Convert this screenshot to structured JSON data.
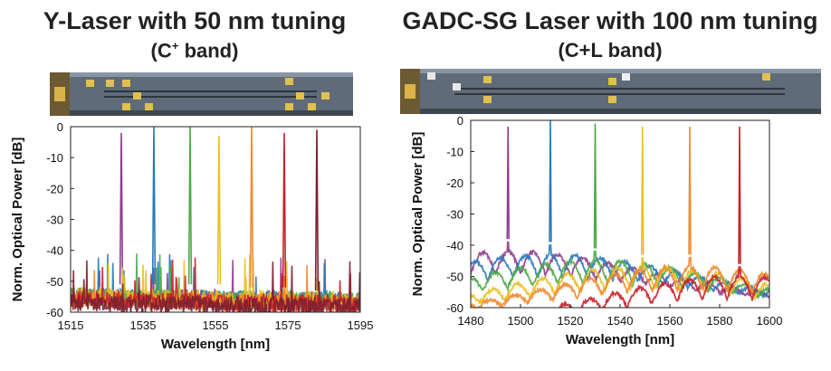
{
  "chart_data": [
    {
      "type": "line",
      "title": "Y-Laser with 50 nm tuning",
      "subtitle_prefix": "(C",
      "subtitle_sup": "+",
      "subtitle_suffix": " band)",
      "xlabel": "Wavelength [nm]",
      "ylabel": "Norm. Optical Power [dB]",
      "xlim": [
        1515,
        1595
      ],
      "ylim": [
        -60,
        0
      ],
      "xticks": [
        1515,
        1535,
        1555,
        1575,
        1595
      ],
      "yticks": [
        0,
        -10,
        -20,
        -30,
        -40,
        -50,
        -60
      ],
      "grid": false,
      "legend": "none",
      "series": [
        {
          "color": "#8e3d8e",
          "peak_x": 1529,
          "peak_y": -2,
          "floor": -55
        },
        {
          "color": "#2a7ab8",
          "peak_x": 1538,
          "peak_y": 0,
          "floor": -55
        },
        {
          "color": "#4ea84a",
          "peak_x": 1548,
          "peak_y": 0,
          "floor": -55
        },
        {
          "color": "#e8c020",
          "peak_x": 1556,
          "peak_y": -3,
          "floor": -55
        },
        {
          "color": "#f08a30",
          "peak_x": 1565,
          "peak_y": 0,
          "floor": -56
        },
        {
          "color": "#c8202a",
          "peak_x": 1574,
          "peak_y": -2,
          "floor": -56
        },
        {
          "color": "#7a2030",
          "peak_x": 1583,
          "peak_y": -1,
          "floor": -57
        }
      ]
    },
    {
      "type": "line",
      "title": "GADC-SG Laser with 100 nm tuning",
      "subtitle": "(C+L band)",
      "xlabel": "Wavelength [nm]",
      "ylabel": "Norm. Optical Power [dB]",
      "xlim": [
        1480,
        1600
      ],
      "ylim": [
        -60,
        0
      ],
      "xticks": [
        1480,
        1500,
        1520,
        1540,
        1560,
        1580,
        1600
      ],
      "yticks": [
        0,
        -10,
        -20,
        -30,
        -40,
        -50,
        -60
      ],
      "grid": false,
      "legend": "none",
      "series": [
        {
          "color": "#8e3d8e",
          "peak_x": 1495,
          "peak_y": -2,
          "floor": -42
        },
        {
          "color": "#2a7ab8",
          "peak_x": 1512,
          "peak_y": 0,
          "floor": -43
        },
        {
          "color": "#4ea84a",
          "peak_x": 1530,
          "peak_y": -1,
          "floor": -45
        },
        {
          "color": "#e8c020",
          "peak_x": 1549,
          "peak_y": -2,
          "floor": -47
        },
        {
          "color": "#f08a30",
          "peak_x": 1568,
          "peak_y": -2,
          "floor": -47
        },
        {
          "color": "#c8202a",
          "peak_x": 1588,
          "peak_y": -2,
          "floor": -50
        }
      ]
    }
  ]
}
